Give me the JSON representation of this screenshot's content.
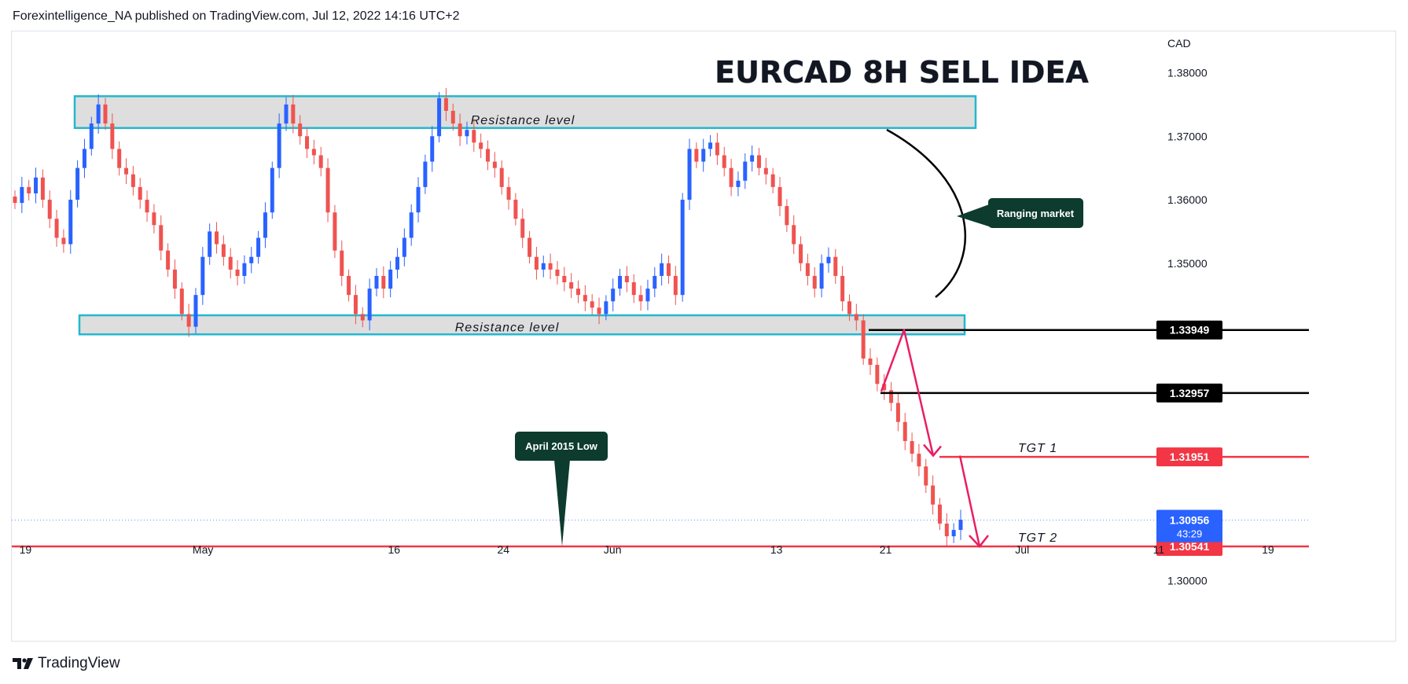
{
  "header": {
    "publisher_line": "Forexintelligence_NA published on TradingView.com, Jul 12, 2022 14:16 UTC+2"
  },
  "footer": {
    "brand": "TradingView"
  },
  "colors": {
    "up": "#2962ff",
    "down": "#ef5350",
    "zone_border": "#22b8cf",
    "zone_fill": "#dedede",
    "target": "#f23645",
    "dark_label": "#0d3b2e",
    "arrow": "#e91e63"
  },
  "chart_data": {
    "type": "candlestick",
    "title": "EURCAD 8H SELL IDEA",
    "currency": "CAD",
    "ylim": [
      1.2955,
      1.3865
    ],
    "y_ticks": [
      "1.38000",
      "1.37000",
      "1.36000",
      "1.35000",
      "1.30000"
    ],
    "x_ticks": [
      {
        "label": "19",
        "date": "2022-04-19"
      },
      {
        "label": "May",
        "date": "2022-05-02"
      },
      {
        "label": "16",
        "date": "2022-05-16"
      },
      {
        "label": "24",
        "date": "2022-05-24"
      },
      {
        "label": "Jun",
        "date": "2022-06-01"
      },
      {
        "label": "13",
        "date": "2022-06-13"
      },
      {
        "label": "21",
        "date": "2022-06-21"
      },
      {
        "label": "Jul",
        "date": "2022-07-01"
      },
      {
        "label": "11",
        "date": "2022-07-11"
      },
      {
        "label": "19",
        "date": "2022-07-19"
      }
    ],
    "close_series": [
      1.3595,
      1.362,
      1.361,
      1.3635,
      1.36,
      1.357,
      1.354,
      1.353,
      1.36,
      1.365,
      1.368,
      1.372,
      1.375,
      1.372,
      1.368,
      1.365,
      1.364,
      1.362,
      1.36,
      1.358,
      1.356,
      1.352,
      1.349,
      1.346,
      1.342,
      1.34,
      1.345,
      1.351,
      1.355,
      1.353,
      1.351,
      1.349,
      1.348,
      1.35,
      1.351,
      1.354,
      1.358,
      1.365,
      1.372,
      1.375,
      1.372,
      1.37,
      1.368,
      1.367,
      1.365,
      1.358,
      1.352,
      1.348,
      1.345,
      1.342,
      1.341,
      1.346,
      1.348,
      1.346,
      1.349,
      1.351,
      1.354,
      1.358,
      1.362,
      1.366,
      1.37,
      1.376,
      1.374,
      1.372,
      1.37,
      1.371,
      1.369,
      1.368,
      1.366,
      1.365,
      1.362,
      1.36,
      1.357,
      1.354,
      1.351,
      1.349,
      1.35,
      1.349,
      1.348,
      1.347,
      1.346,
      1.345,
      1.344,
      1.343,
      1.342,
      1.344,
      1.346,
      1.348,
      1.347,
      1.345,
      1.344,
      1.346,
      1.348,
      1.35,
      1.348,
      1.345,
      1.36,
      1.368,
      1.366,
      1.368,
      1.369,
      1.367,
      1.365,
      1.362,
      1.363,
      1.366,
      1.367,
      1.365,
      1.364,
      1.362,
      1.359,
      1.356,
      1.353,
      1.35,
      1.348,
      1.346,
      1.35,
      1.351,
      1.348,
      1.344,
      1.342,
      1.341,
      1.335,
      1.334,
      1.331,
      1.33,
      1.328,
      1.325,
      1.322,
      1.32,
      1.318,
      1.315,
      1.312,
      1.309,
      1.307,
      1.308,
      1.3096
    ],
    "annotations": {
      "upper_zone": {
        "label": "Resistance level",
        "low": 1.3713,
        "high": 1.3763
      },
      "lower_zone": {
        "label": "Resistance level",
        "low": 1.3388,
        "high": 1.3418
      },
      "ranging_label": "Ranging market",
      "april_low_label": "April 2015 Low",
      "levels": [
        {
          "value": "1.33949",
          "kind": "black"
        },
        {
          "value": "1.32957",
          "kind": "black"
        },
        {
          "value": "1.31951",
          "kind": "target",
          "label": "TGT 1"
        },
        {
          "value": "1.30541",
          "kind": "target",
          "label": "TGT 2"
        }
      ],
      "last_price": {
        "value": "1.30956",
        "countdown": "43:29"
      }
    }
  }
}
